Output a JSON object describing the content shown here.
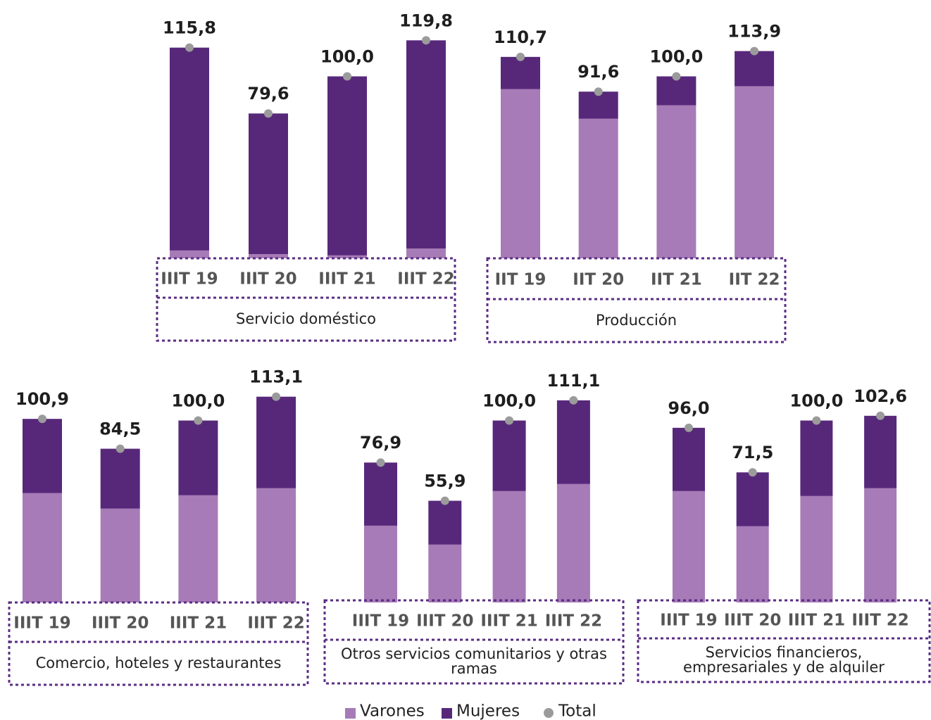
{
  "chart_data": [
    {
      "type": "bar",
      "stacked": true,
      "title": "Servicio doméstico",
      "categories": [
        "IIIT 19",
        "IIIT 20",
        "IIIT 21",
        "IIIT 22"
      ],
      "series": [
        {
          "name": "Varones",
          "color": "#a77bb7",
          "values": [
            4.3,
            2.3,
            1.6,
            5.4
          ]
        },
        {
          "name": "Mujeres",
          "color": "#57287a",
          "values": [
            111.5,
            77.3,
            98.4,
            114.4
          ]
        },
        {
          "name": "Total",
          "color": "#9b9b9b",
          "marker": "dot",
          "values": [
            115.8,
            79.6,
            100.0,
            119.8
          ],
          "value_labels": [
            "115,8",
            "79,6",
            "100,0",
            "119,8"
          ]
        }
      ]
    },
    {
      "type": "bar",
      "stacked": true,
      "title": "Producción",
      "categories": [
        "IIT 19",
        "IIT 20",
        "IIT 21",
        "IIT 22"
      ],
      "series": [
        {
          "name": "Varones",
          "color": "#a77bb7",
          "values": [
            93.0,
            76.7,
            84.1,
            94.6
          ]
        },
        {
          "name": "Mujeres",
          "color": "#57287a",
          "values": [
            17.7,
            14.9,
            15.9,
            19.3
          ]
        },
        {
          "name": "Total",
          "color": "#9b9b9b",
          "marker": "dot",
          "values": [
            110.7,
            91.6,
            100.0,
            113.9
          ],
          "value_labels": [
            "110,7",
            "91,6",
            "100,0",
            "113,9"
          ]
        }
      ]
    },
    {
      "type": "bar",
      "stacked": true,
      "title": "Comercio, hoteles y restaurantes",
      "categories": [
        "IIIT 19",
        "IIIT 20",
        "IIIT 21",
        "IIIT 22"
      ],
      "series": [
        {
          "name": "Varones",
          "color": "#a77bb7",
          "values": [
            60.1,
            51.6,
            58.9,
            62.8
          ]
        },
        {
          "name": "Mujeres",
          "color": "#57287a",
          "values": [
            40.8,
            32.9,
            41.1,
            50.3
          ]
        },
        {
          "name": "Total",
          "color": "#9b9b9b",
          "marker": "dot",
          "values": [
            100.9,
            84.5,
            100.0,
            113.1
          ],
          "value_labels": [
            "100,9",
            "84,5",
            "100,0",
            "113,1"
          ]
        }
      ]
    },
    {
      "type": "bar",
      "stacked": true,
      "title": "Otros servicios comunitarios y otras ramas",
      "categories": [
        "IIIT 19",
        "IIIT 20",
        "IIIT 21",
        "IIIT 22"
      ],
      "series": [
        {
          "name": "Varones",
          "color": "#a77bb7",
          "values": [
            42.2,
            31.8,
            61.2,
            65.1
          ]
        },
        {
          "name": "Mujeres",
          "color": "#57287a",
          "values": [
            34.7,
            24.1,
            38.8,
            46.0
          ]
        },
        {
          "name": "Total",
          "color": "#9b9b9b",
          "marker": "dot",
          "values": [
            76.9,
            55.9,
            100.0,
            111.1
          ],
          "value_labels": [
            "76,9",
            "55,9",
            "100,0",
            "111,1"
          ]
        }
      ]
    },
    {
      "type": "bar",
      "stacked": true,
      "title": "Servicios financieros, empresariales y de alquiler",
      "categories": [
        "IIIT 19",
        "IIIT 20",
        "IIIT 21",
        "IIIT 22"
      ],
      "series": [
        {
          "name": "Varones",
          "color": "#a77bb7",
          "values": [
            61.2,
            41.9,
            58.5,
            62.8
          ]
        },
        {
          "name": "Mujeres",
          "color": "#57287a",
          "values": [
            34.8,
            29.6,
            41.5,
            39.8
          ]
        },
        {
          "name": "Total",
          "color": "#9b9b9b",
          "marker": "dot",
          "values": [
            96.0,
            71.5,
            100.0,
            102.6
          ],
          "value_labels": [
            "96,0",
            "71,5",
            "100,0",
            "102,6"
          ]
        }
      ]
    }
  ]
}
